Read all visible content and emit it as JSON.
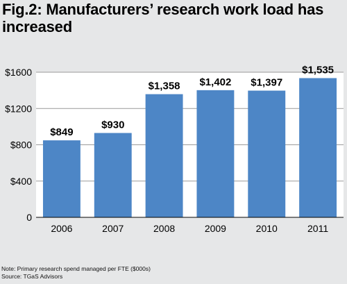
{
  "title": "Fig.2: Manufacturers’ research work load has increased",
  "note": "Note: Primary research spend managed per FTE ($000s)",
  "source": "Source: TGaS Advisors",
  "colors": {
    "background": "#e6e7e8",
    "bar": "#4d86c6",
    "plot_bg": "#ffffff"
  },
  "chart_data": {
    "type": "bar",
    "title": "Fig.2: Manufacturers’ research work load has increased",
    "categories": [
      "2006",
      "2007",
      "2008",
      "2009",
      "2010",
      "2011"
    ],
    "values": [
      849,
      930,
      1358,
      1402,
      1397,
      1535
    ],
    "data_labels": [
      "$849",
      "$930",
      "$1,358",
      "$1,402",
      "$1,397",
      "$1,535"
    ],
    "y_ticks": [
      0,
      400,
      800,
      1200,
      1600
    ],
    "y_tick_labels": [
      "0",
      "$400",
      "$800",
      "$1200",
      "$1600"
    ],
    "ylim": [
      0,
      1600
    ],
    "xlabel": "",
    "ylabel": "",
    "grid": true,
    "legend": "none"
  }
}
